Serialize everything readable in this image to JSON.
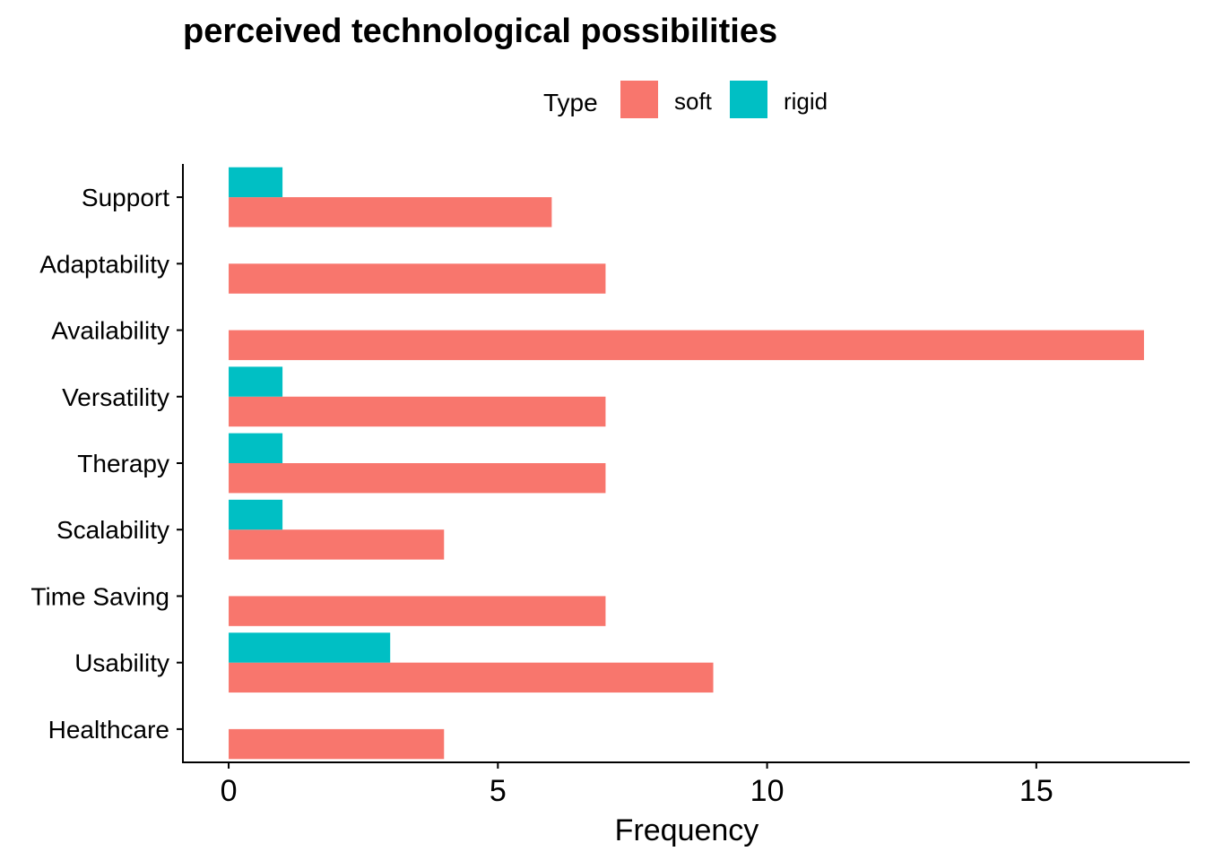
{
  "chart_data": {
    "type": "bar",
    "orientation": "horizontal",
    "title": "perceived technological possibilities",
    "xlabel": "Frequency",
    "ylabel": "",
    "categories": [
      "Support",
      "Adaptability",
      "Availability",
      "Versatility",
      "Therapy",
      "Scalability",
      "Time Saving",
      "Usability",
      "Healthcare"
    ],
    "series": [
      {
        "name": "soft",
        "color": "#F8766D",
        "values": [
          6,
          7,
          17,
          7,
          7,
          4,
          7,
          9,
          4
        ]
      },
      {
        "name": "rigid",
        "color": "#00BFC4",
        "values": [
          1,
          0,
          0,
          1,
          1,
          1,
          0,
          3,
          0
        ]
      }
    ],
    "legend": {
      "title": "Type",
      "position": "top"
    },
    "xlim": [
      -0.85,
      17.85
    ],
    "xticks": [
      0,
      5,
      10,
      15
    ],
    "grid": false
  }
}
